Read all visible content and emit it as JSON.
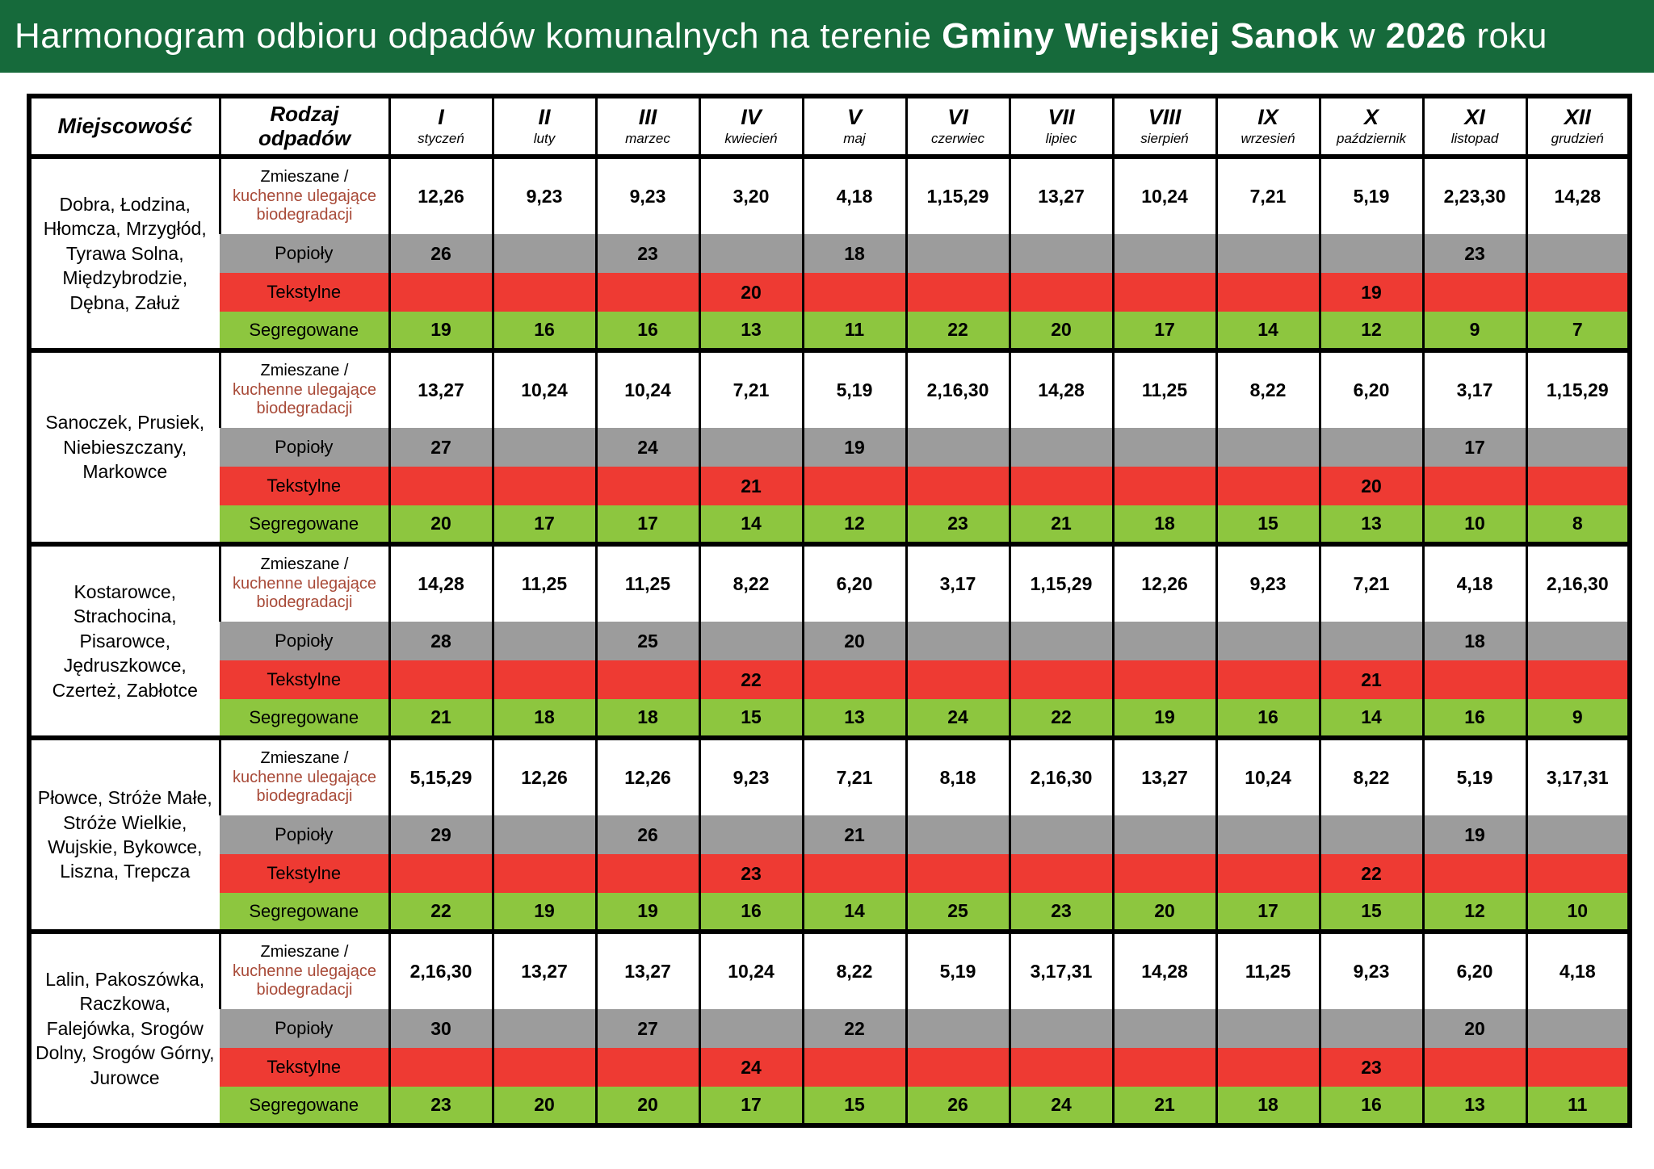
{
  "title": {
    "prefix": "Harmonogram odbioru odpadów komunalnych na terenie ",
    "bold_name": "Gminy Wiejskiej Sanok",
    "middle": " w ",
    "bold_year": "2026",
    "suffix": " roku"
  },
  "colors": {
    "header_bar_green": "#166a3b",
    "row_mixed_bg": "#ffffff",
    "row_ash_bg": "#9c9c9c",
    "row_textile_bg": "#ee3a33",
    "row_segregated_bg": "#8dc63f",
    "mixed_label_accent": "#a84a38"
  },
  "table": {
    "col_locality_header": "Miejscowość",
    "col_waste_type_lines": [
      "Rodzaj",
      "odpadów"
    ],
    "months": [
      {
        "numeral": "I",
        "name": "styczeń"
      },
      {
        "numeral": "II",
        "name": "luty"
      },
      {
        "numeral": "III",
        "name": "marzec"
      },
      {
        "numeral": "IV",
        "name": "kwiecień"
      },
      {
        "numeral": "V",
        "name": "maj"
      },
      {
        "numeral": "VI",
        "name": "czerwiec"
      },
      {
        "numeral": "VII",
        "name": "lipiec"
      },
      {
        "numeral": "VIII",
        "name": "sierpień"
      },
      {
        "numeral": "IX",
        "name": "wrzesień"
      },
      {
        "numeral": "X",
        "name": "październik"
      },
      {
        "numeral": "XI",
        "name": "listopad"
      },
      {
        "numeral": "XII",
        "name": "grudzień"
      }
    ],
    "row_labels": {
      "mixed_black": "Zmieszane /",
      "mixed_brown": "kuchenne ulegające biodegradacji",
      "ash": "Popioły",
      "textile": "Tekstylne",
      "segregated": "Segregowane"
    }
  },
  "groups": [
    {
      "locality": "Dobra, Łodzina, Hłomcza, Mrzygłód, Tyrawa Solna, Międzybrodzie, Dębna, Załuż",
      "mixed": [
        "12,26",
        "9,23",
        "9,23",
        "3,20",
        "4,18",
        "1,15,29",
        "13,27",
        "10,24",
        "7,21",
        "5,19",
        "2,23,30",
        "14,28"
      ],
      "ash": [
        "26",
        "",
        "23",
        "",
        "18",
        "",
        "",
        "",
        "",
        "",
        "23",
        ""
      ],
      "textile": [
        "",
        "",
        "",
        "20",
        "",
        "",
        "",
        "",
        "",
        "19",
        "",
        ""
      ],
      "segregated": [
        "19",
        "16",
        "16",
        "13",
        "11",
        "22",
        "20",
        "17",
        "14",
        "12",
        "9",
        "7"
      ]
    },
    {
      "locality": "Sanoczek, Prusiek, Niebieszczany, Markowce",
      "mixed": [
        "13,27",
        "10,24",
        "10,24",
        "7,21",
        "5,19",
        "2,16,30",
        "14,28",
        "11,25",
        "8,22",
        "6,20",
        "3,17",
        "1,15,29"
      ],
      "ash": [
        "27",
        "",
        "24",
        "",
        "19",
        "",
        "",
        "",
        "",
        "",
        "17",
        ""
      ],
      "textile": [
        "",
        "",
        "",
        "21",
        "",
        "",
        "",
        "",
        "",
        "20",
        "",
        ""
      ],
      "segregated": [
        "20",
        "17",
        "17",
        "14",
        "12",
        "23",
        "21",
        "18",
        "15",
        "13",
        "10",
        "8"
      ]
    },
    {
      "locality": "Kostarowce, Strachocina, Pisarowce, Jędruszkowce, Czerteż, Zabłotce",
      "mixed": [
        "14,28",
        "11,25",
        "11,25",
        "8,22",
        "6,20",
        "3,17",
        "1,15,29",
        "12,26",
        "9,23",
        "7,21",
        "4,18",
        "2,16,30"
      ],
      "ash": [
        "28",
        "",
        "25",
        "",
        "20",
        "",
        "",
        "",
        "",
        "",
        "18",
        ""
      ],
      "textile": [
        "",
        "",
        "",
        "22",
        "",
        "",
        "",
        "",
        "",
        "21",
        "",
        ""
      ],
      "segregated": [
        "21",
        "18",
        "18",
        "15",
        "13",
        "24",
        "22",
        "19",
        "16",
        "14",
        "16",
        "9"
      ]
    },
    {
      "locality": "Płowce, Stróże Małe, Stróże Wielkie, Wujskie, Bykowce, Liszna, Trepcza",
      "mixed": [
        "5,15,29",
        "12,26",
        "12,26",
        "9,23",
        "7,21",
        "8,18",
        "2,16,30",
        "13,27",
        "10,24",
        "8,22",
        "5,19",
        "3,17,31"
      ],
      "ash": [
        "29",
        "",
        "26",
        "",
        "21",
        "",
        "",
        "",
        "",
        "",
        "19",
        ""
      ],
      "textile": [
        "",
        "",
        "",
        "23",
        "",
        "",
        "",
        "",
        "",
        "22",
        "",
        ""
      ],
      "segregated": [
        "22",
        "19",
        "19",
        "16",
        "14",
        "25",
        "23",
        "20",
        "17",
        "15",
        "12",
        "10"
      ]
    },
    {
      "locality": "Lalin, Pakoszówka, Raczkowa, Falejówka, Srogów Dolny, Srogów Górny, Jurowce",
      "mixed": [
        "2,16,30",
        "13,27",
        "13,27",
        "10,24",
        "8,22",
        "5,19",
        "3,17,31",
        "14,28",
        "11,25",
        "9,23",
        "6,20",
        "4,18"
      ],
      "ash": [
        "30",
        "",
        "27",
        "",
        "22",
        "",
        "",
        "",
        "",
        "",
        "20",
        ""
      ],
      "textile": [
        "",
        "",
        "",
        "24",
        "",
        "",
        "",
        "",
        "",
        "23",
        "",
        ""
      ],
      "segregated": [
        "23",
        "20",
        "20",
        "17",
        "15",
        "26",
        "24",
        "21",
        "18",
        "16",
        "13",
        "11"
      ]
    }
  ]
}
